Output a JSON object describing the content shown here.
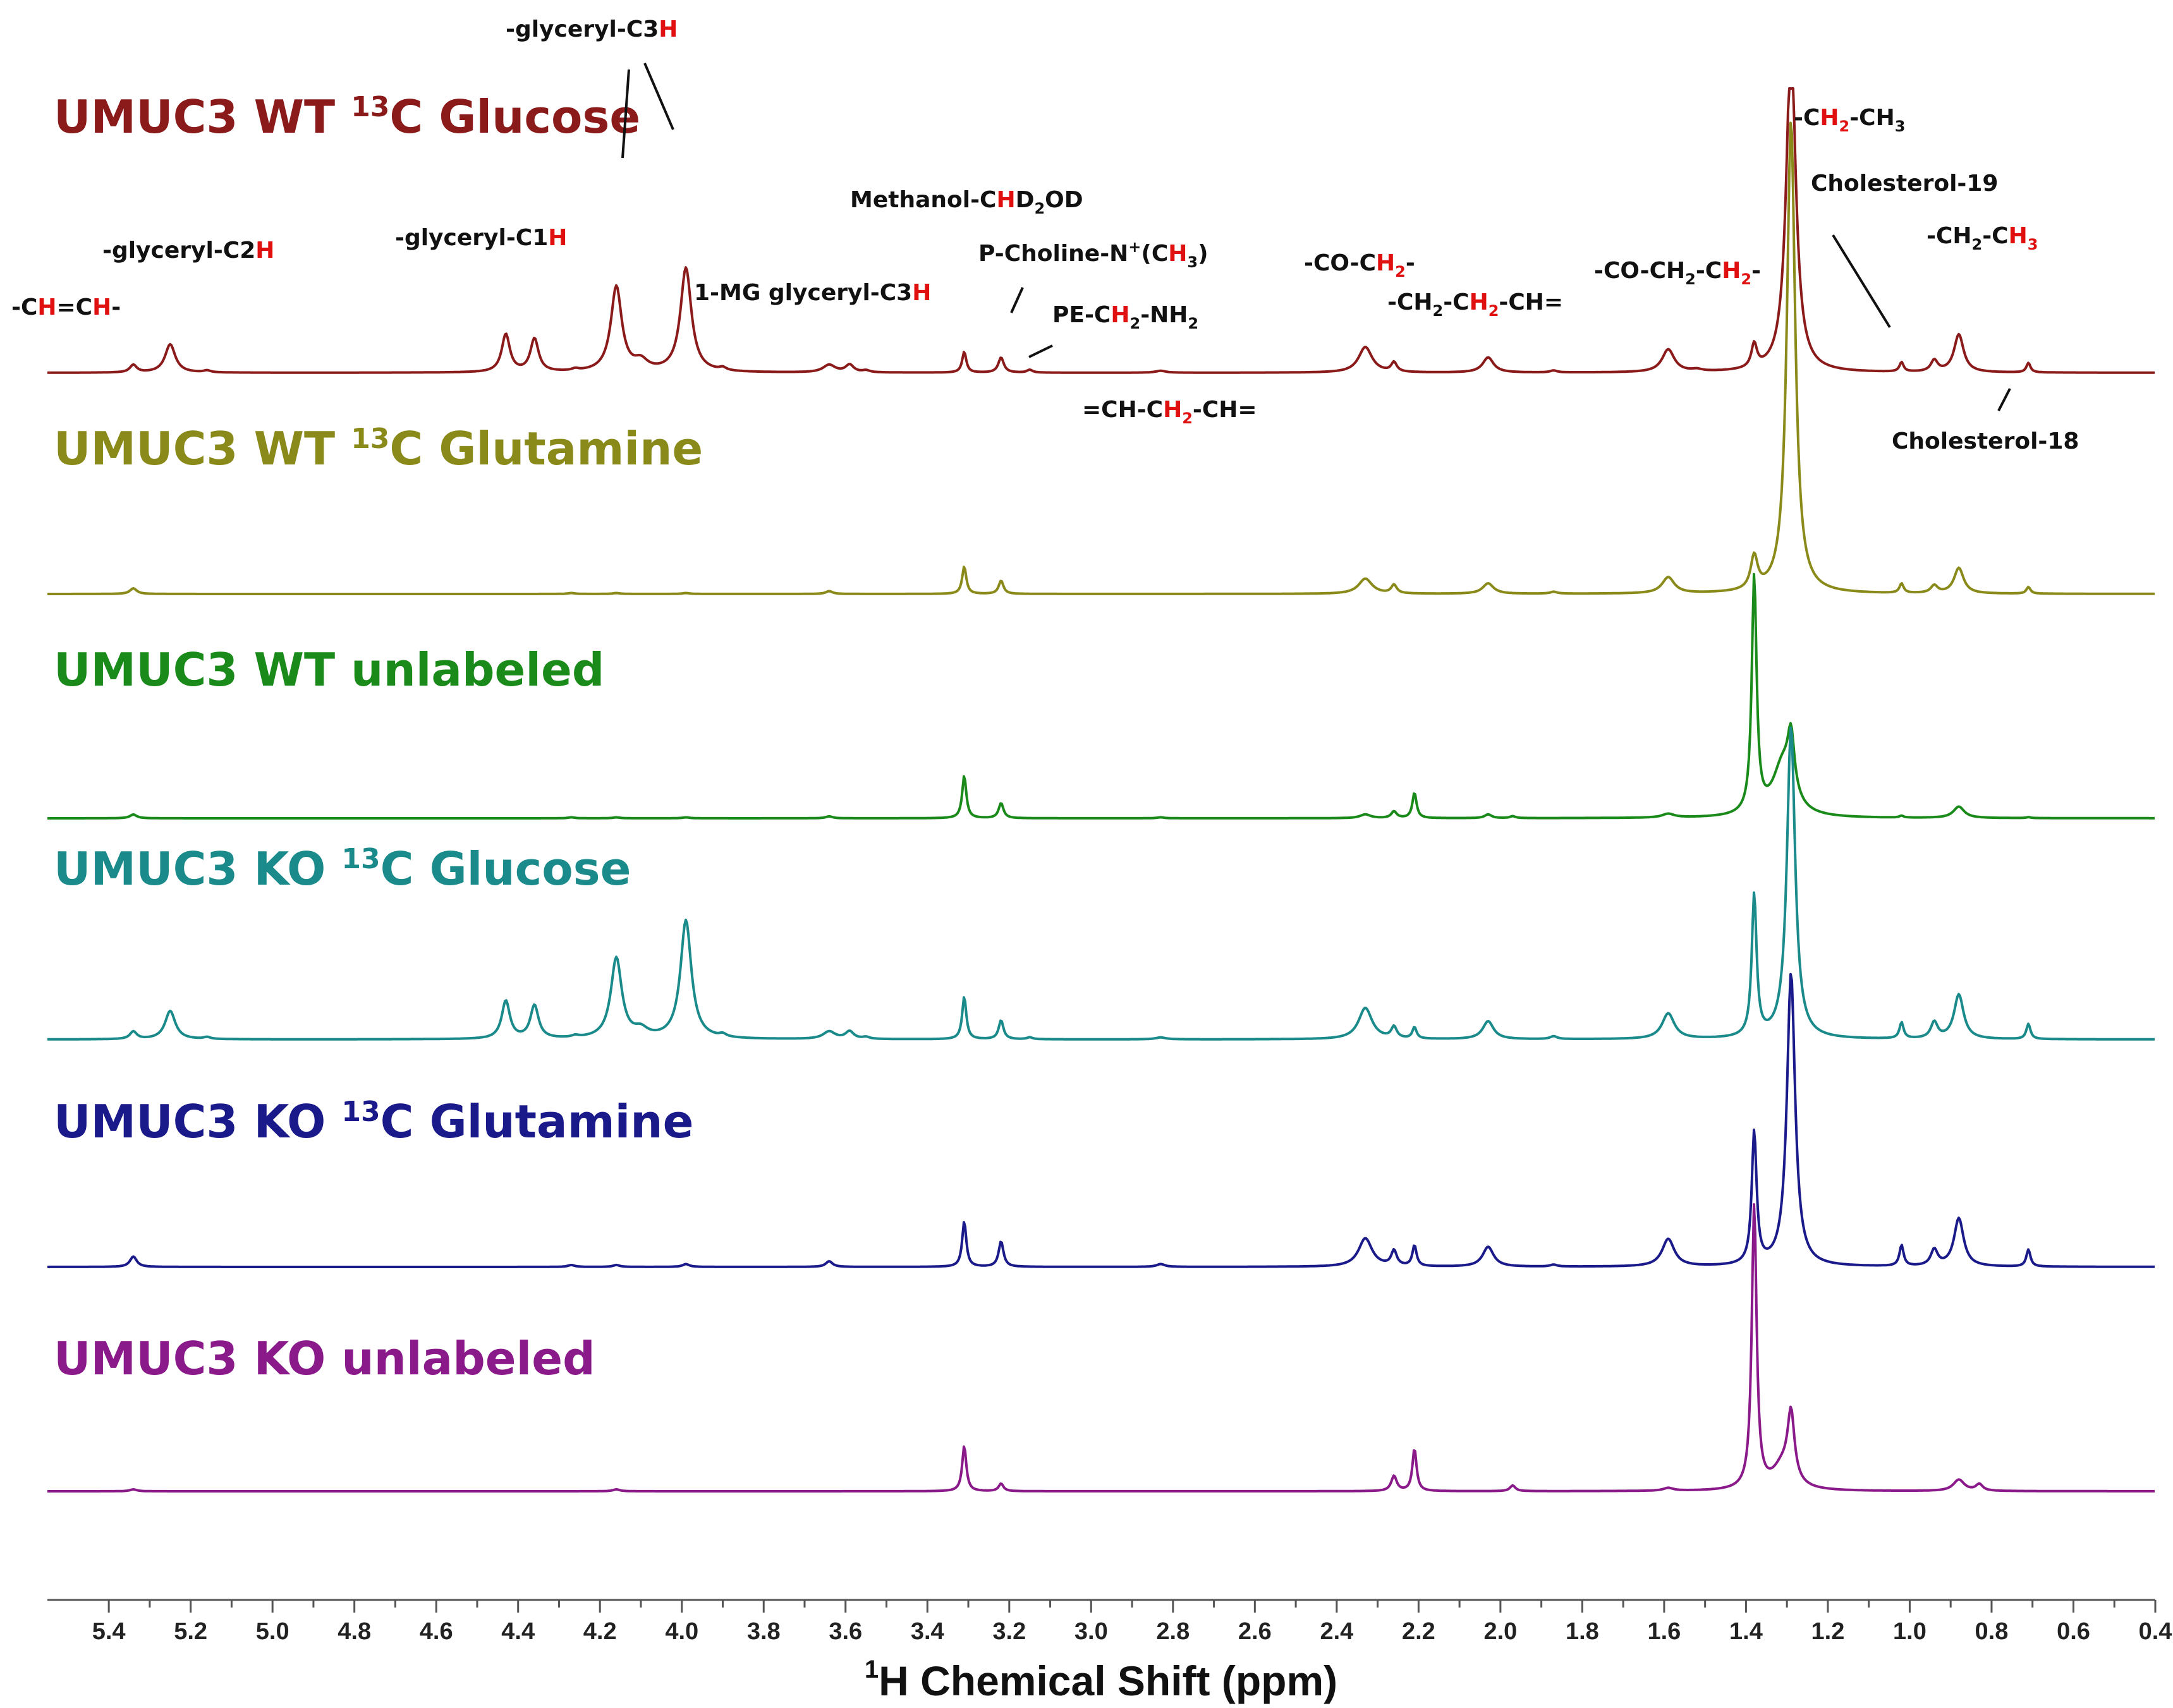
{
  "chart_data": {
    "type": "line",
    "title": "",
    "xlabel": "1H Chemical Shift (ppm)",
    "xlabel_parts": {
      "sup": "1",
      "rest": "H Chemical Shift (ppm)"
    },
    "ylabel": "",
    "xlim": [
      5.55,
      0.4
    ],
    "x_reversed": true,
    "grid": false,
    "ticks": [
      "5.4",
      "5.2",
      "5.0",
      "4.8",
      "4.6",
      "4.4",
      "4.2",
      "4.0",
      "3.8",
      "3.6",
      "3.4",
      "3.2",
      "3.0",
      "2.8",
      "2.6",
      "2.4",
      "2.2",
      "2.0",
      "1.8",
      "1.6",
      "1.4",
      "1.2",
      "1.0",
      "0.8",
      "0.6",
      "0.4"
    ],
    "series": [
      {
        "name": "UMUC3 WT 13C Glucose",
        "label_parts": {
          "pre": "UMUC3 WT ",
          "sup": "13",
          "post": "C Glucose"
        },
        "color": "#8b1a1a",
        "baseline": 0,
        "peaks": [
          [
            5.34,
            0.08,
            0.01
          ],
          [
            5.25,
            0.3,
            0.015
          ],
          [
            5.16,
            0.02,
            0.01
          ],
          [
            4.43,
            0.4,
            0.012
          ],
          [
            4.36,
            0.35,
            0.012
          ],
          [
            4.26,
            0.02,
            0.01
          ],
          [
            4.16,
            0.9,
            0.016
          ],
          [
            4.1,
            0.1,
            0.02
          ],
          [
            3.99,
            1.1,
            0.016
          ],
          [
            3.9,
            0.03,
            0.01
          ],
          [
            3.64,
            0.08,
            0.018
          ],
          [
            3.59,
            0.08,
            0.012
          ],
          [
            3.55,
            0.02,
            0.01
          ],
          [
            3.31,
            0.22,
            0.006
          ],
          [
            3.22,
            0.16,
            0.008
          ],
          [
            3.15,
            0.03,
            0.008
          ],
          [
            2.83,
            0.02,
            0.015
          ],
          [
            2.33,
            0.27,
            0.02
          ],
          [
            2.26,
            0.1,
            0.008
          ],
          [
            2.03,
            0.16,
            0.016
          ],
          [
            1.87,
            0.02,
            0.01
          ],
          [
            1.59,
            0.24,
            0.018
          ],
          [
            1.52,
            0.02,
            0.015
          ],
          [
            1.38,
            0.25,
            0.008
          ],
          [
            1.29,
            3.5,
            0.014
          ],
          [
            1.02,
            0.1,
            0.006
          ],
          [
            0.94,
            0.12,
            0.01
          ],
          [
            0.88,
            0.4,
            0.014
          ],
          [
            0.71,
            0.1,
            0.006
          ]
        ]
      },
      {
        "name": "UMUC3 WT 13C Glutamine",
        "label_parts": {
          "pre": "UMUC3 WT ",
          "sup": "13",
          "post": "C Glutamine"
        },
        "color": "#8a8a1a",
        "baseline": 1,
        "peaks": [
          [
            5.34,
            0.06,
            0.01
          ],
          [
            4.27,
            0.01,
            0.01
          ],
          [
            4.16,
            0.01,
            0.01
          ],
          [
            3.99,
            0.01,
            0.01
          ],
          [
            3.64,
            0.03,
            0.01
          ],
          [
            3.31,
            0.29,
            0.006
          ],
          [
            3.22,
            0.14,
            0.007
          ],
          [
            2.33,
            0.16,
            0.02
          ],
          [
            2.26,
            0.09,
            0.008
          ],
          [
            2.03,
            0.11,
            0.016
          ],
          [
            1.87,
            0.02,
            0.01
          ],
          [
            1.59,
            0.17,
            0.018
          ],
          [
            1.38,
            0.35,
            0.01
          ],
          [
            1.29,
            5.0,
            0.012
          ],
          [
            1.02,
            0.1,
            0.006
          ],
          [
            0.94,
            0.08,
            0.01
          ],
          [
            0.88,
            0.27,
            0.014
          ],
          [
            0.71,
            0.07,
            0.006
          ]
        ]
      },
      {
        "name": "UMUC3 WT unlabeled",
        "label_parts": {
          "pre": "UMUC3 WT unlabeled",
          "sup": "",
          "post": ""
        },
        "color": "#1a8a1a",
        "baseline": 2,
        "peaks": [
          [
            5.34,
            0.04,
            0.01
          ],
          [
            4.27,
            0.01,
            0.01
          ],
          [
            4.16,
            0.01,
            0.01
          ],
          [
            3.99,
            0.01,
            0.01
          ],
          [
            3.64,
            0.02,
            0.01
          ],
          [
            3.31,
            0.45,
            0.006
          ],
          [
            3.22,
            0.16,
            0.007
          ],
          [
            2.83,
            0.01,
            0.01
          ],
          [
            2.33,
            0.04,
            0.015
          ],
          [
            2.26,
            0.07,
            0.008
          ],
          [
            2.21,
            0.27,
            0.006
          ],
          [
            2.03,
            0.04,
            0.01
          ],
          [
            1.97,
            0.02,
            0.008
          ],
          [
            1.59,
            0.04,
            0.018
          ],
          [
            1.38,
            2.5,
            0.007
          ],
          [
            1.31,
            0.55,
            0.03
          ],
          [
            1.29,
            0.6,
            0.01
          ],
          [
            1.02,
            0.02,
            0.006
          ],
          [
            0.88,
            0.12,
            0.016
          ],
          [
            0.71,
            0.01,
            0.006
          ]
        ]
      },
      {
        "name": "UMUC3 KO 13C Glucose",
        "label_parts": {
          "pre": "UMUC3 KO ",
          "sup": "13",
          "post": "C Glucose"
        },
        "color": "#1a8a8a",
        "baseline": 3,
        "peaks": [
          [
            5.34,
            0.08,
            0.01
          ],
          [
            5.25,
            0.3,
            0.015
          ],
          [
            5.16,
            0.02,
            0.01
          ],
          [
            4.43,
            0.4,
            0.012
          ],
          [
            4.36,
            0.35,
            0.012
          ],
          [
            4.26,
            0.02,
            0.01
          ],
          [
            4.16,
            0.85,
            0.016
          ],
          [
            4.1,
            0.08,
            0.02
          ],
          [
            3.99,
            1.25,
            0.016
          ],
          [
            3.9,
            0.03,
            0.01
          ],
          [
            3.64,
            0.08,
            0.018
          ],
          [
            3.59,
            0.08,
            0.012
          ],
          [
            3.55,
            0.02,
            0.01
          ],
          [
            3.31,
            0.45,
            0.006
          ],
          [
            3.22,
            0.2,
            0.007
          ],
          [
            3.15,
            0.02,
            0.008
          ],
          [
            2.83,
            0.02,
            0.015
          ],
          [
            2.33,
            0.33,
            0.02
          ],
          [
            2.26,
            0.12,
            0.008
          ],
          [
            2.21,
            0.12,
            0.006
          ],
          [
            2.03,
            0.19,
            0.016
          ],
          [
            1.87,
            0.03,
            0.01
          ],
          [
            1.59,
            0.27,
            0.018
          ],
          [
            1.38,
            1.5,
            0.007
          ],
          [
            1.29,
            3.3,
            0.012
          ],
          [
            1.02,
            0.17,
            0.006
          ],
          [
            0.94,
            0.17,
            0.01
          ],
          [
            0.88,
            0.47,
            0.014
          ],
          [
            0.71,
            0.16,
            0.006
          ]
        ]
      },
      {
        "name": "UMUC3 KO 13C Glutamine",
        "label_parts": {
          "pre": "UMUC3 KO ",
          "sup": "13",
          "post": "C Glutamine"
        },
        "color": "#1a1a8a",
        "baseline": 4,
        "peaks": [
          [
            5.34,
            0.11,
            0.01
          ],
          [
            4.27,
            0.02,
            0.01
          ],
          [
            4.16,
            0.02,
            0.01
          ],
          [
            3.99,
            0.03,
            0.01
          ],
          [
            3.64,
            0.06,
            0.01
          ],
          [
            3.31,
            0.48,
            0.006
          ],
          [
            3.22,
            0.27,
            0.007
          ],
          [
            2.83,
            0.03,
            0.012
          ],
          [
            2.33,
            0.3,
            0.02
          ],
          [
            2.26,
            0.16,
            0.008
          ],
          [
            2.21,
            0.22,
            0.006
          ],
          [
            2.03,
            0.21,
            0.016
          ],
          [
            1.87,
            0.02,
            0.01
          ],
          [
            1.59,
            0.29,
            0.018
          ],
          [
            1.38,
            1.4,
            0.007
          ],
          [
            1.29,
            3.1,
            0.012
          ],
          [
            1.02,
            0.22,
            0.006
          ],
          [
            0.94,
            0.17,
            0.01
          ],
          [
            0.88,
            0.51,
            0.014
          ],
          [
            0.71,
            0.18,
            0.006
          ]
        ]
      },
      {
        "name": "UMUC3 KO unlabeled",
        "label_parts": {
          "pre": "UMUC3 KO unlabeled",
          "sup": "",
          "post": ""
        },
        "color": "#8a1a8a",
        "baseline": 5,
        "peaks": [
          [
            5.34,
            0.02,
            0.01
          ],
          [
            4.16,
            0.02,
            0.01
          ],
          [
            3.31,
            0.48,
            0.006
          ],
          [
            3.22,
            0.08,
            0.007
          ],
          [
            2.26,
            0.16,
            0.008
          ],
          [
            2.21,
            0.45,
            0.006
          ],
          [
            1.97,
            0.06,
            0.008
          ],
          [
            1.59,
            0.03,
            0.015
          ],
          [
            1.38,
            3.0,
            0.007
          ],
          [
            1.31,
            0.25,
            0.03
          ],
          [
            1.29,
            0.7,
            0.01
          ],
          [
            0.88,
            0.12,
            0.016
          ],
          [
            0.83,
            0.07,
            0.01
          ]
        ]
      }
    ],
    "annotations": [
      {
        "id": "ch-ch",
        "parts": [
          [
            "-C",
            ""
          ],
          [
            "H",
            "red"
          ],
          [
            "=C",
            ""
          ],
          [
            "H",
            "red"
          ],
          [
            "-",
            ""
          ]
        ]
      },
      {
        "id": "glyceryl-c2h",
        "parts": [
          [
            "-glyceryl-C2",
            ""
          ],
          [
            "H",
            "red"
          ]
        ]
      },
      {
        "id": "glyceryl-c1h",
        "parts": [
          [
            "-glyceryl-C1",
            ""
          ],
          [
            "H",
            "red"
          ]
        ]
      },
      {
        "id": "glyceryl-c3h",
        "parts": [
          [
            "-glyceryl-C3",
            ""
          ],
          [
            "H",
            "red"
          ]
        ]
      },
      {
        "id": "mg-glyceryl-c3h",
        "parts": [
          [
            "1-MG glyceryl-C3",
            ""
          ],
          [
            "H",
            "red"
          ]
        ]
      },
      {
        "id": "methanol",
        "parts": [
          [
            "Methanol-C",
            ""
          ],
          [
            "H",
            "red"
          ],
          [
            "D",
            ""
          ],
          [
            "2",
            "sub"
          ],
          [
            "OD",
            ""
          ]
        ]
      },
      {
        "id": "p-choline",
        "parts": [
          [
            "P-Choline-N",
            ""
          ],
          [
            "+",
            "sup"
          ],
          [
            "(C",
            ""
          ],
          [
            "H",
            "red"
          ],
          [
            "3",
            "sub"
          ],
          [
            ")",
            ""
          ]
        ]
      },
      {
        "id": "pe-ch2-nh2",
        "parts": [
          [
            "PE-C",
            ""
          ],
          [
            "H",
            "red"
          ],
          [
            "2",
            "sub"
          ],
          [
            "-NH",
            ""
          ],
          [
            "2",
            "sub"
          ]
        ]
      },
      {
        "id": "ch-ch2-ch",
        "parts": [
          [
            "=CH-C",
            ""
          ],
          [
            "H",
            "red"
          ],
          [
            "2",
            "subred"
          ],
          [
            "-CH=",
            ""
          ]
        ]
      },
      {
        "id": "co-ch2",
        "parts": [
          [
            "-CO-C",
            ""
          ],
          [
            "H",
            "red"
          ],
          [
            "2",
            "subred"
          ],
          [
            "-",
            ""
          ]
        ]
      },
      {
        "id": "ch2-ch2-ch",
        "parts": [
          [
            "-CH",
            ""
          ],
          [
            "2",
            "sub"
          ],
          [
            "-C",
            ""
          ],
          [
            "H",
            "red"
          ],
          [
            "2",
            "subred"
          ],
          [
            "-CH=",
            ""
          ]
        ]
      },
      {
        "id": "co-ch2-ch2",
        "parts": [
          [
            "-CO-CH",
            ""
          ],
          [
            "2",
            "sub"
          ],
          [
            "-C",
            ""
          ],
          [
            "H",
            "red"
          ],
          [
            "2",
            "subred"
          ],
          [
            "-",
            ""
          ]
        ]
      },
      {
        "id": "ch2-ch3-a",
        "parts": [
          [
            "-C",
            ""
          ],
          [
            "H",
            "red"
          ],
          [
            "2",
            "subred"
          ],
          [
            "-CH",
            ""
          ],
          [
            "3",
            "sub"
          ]
        ]
      },
      {
        "id": "cholesterol-19",
        "parts": [
          [
            "Cholesterol-19",
            ""
          ]
        ]
      },
      {
        "id": "ch2-ch3-b",
        "parts": [
          [
            "-CH",
            ""
          ],
          [
            "2",
            "sub"
          ],
          [
            "-C",
            ""
          ],
          [
            "H",
            "red"
          ],
          [
            "3",
            "subred"
          ]
        ]
      },
      {
        "id": "cholesterol-18",
        "parts": [
          [
            "Cholesterol-18",
            ""
          ]
        ]
      }
    ]
  }
}
